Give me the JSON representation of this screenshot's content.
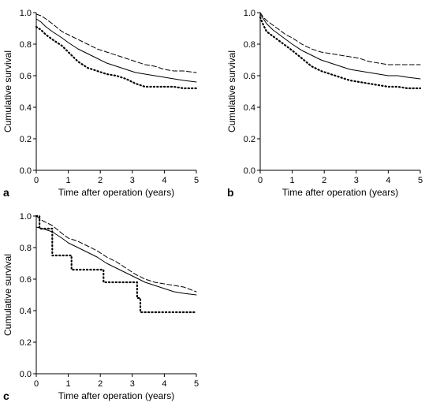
{
  "chart_data": [
    {
      "type": "line",
      "panel_label": "a",
      "xlabel": "Time after operation (years)",
      "ylabel": "Cumulative survival",
      "xlim": [
        0,
        5
      ],
      "ylim": [
        0,
        1.0
      ],
      "xticks": [
        "0",
        "1",
        "2",
        "3",
        "4",
        "5"
      ],
      "yticks": [
        "0.0",
        "0.2",
        "0.4",
        "0.6",
        "0.8",
        "1.0"
      ],
      "series": [
        {
          "style": "dashed",
          "x": [
            0,
            0.15,
            0.3,
            0.5,
            0.8,
            1.0,
            1.3,
            1.6,
            1.9,
            2.2,
            2.5,
            2.8,
            3.1,
            3.4,
            3.7,
            4.0,
            4.3,
            4.6,
            5.0
          ],
          "y": [
            0.99,
            0.98,
            0.96,
            0.93,
            0.88,
            0.86,
            0.83,
            0.8,
            0.77,
            0.75,
            0.73,
            0.71,
            0.69,
            0.67,
            0.66,
            0.64,
            0.63,
            0.63,
            0.62
          ]
        },
        {
          "style": "solid",
          "x": [
            0,
            0.15,
            0.3,
            0.5,
            0.8,
            1.0,
            1.3,
            1.6,
            1.9,
            2.2,
            2.5,
            2.8,
            3.1,
            3.4,
            3.7,
            4.0,
            4.3,
            4.6,
            5.0
          ],
          "y": [
            0.96,
            0.94,
            0.91,
            0.88,
            0.84,
            0.81,
            0.77,
            0.74,
            0.71,
            0.68,
            0.66,
            0.64,
            0.62,
            0.61,
            0.6,
            0.59,
            0.58,
            0.57,
            0.56
          ]
        },
        {
          "style": "dotted",
          "x": [
            0,
            0.15,
            0.3,
            0.5,
            0.8,
            1.0,
            1.3,
            1.6,
            1.9,
            2.2,
            2.5,
            2.8,
            3.1,
            3.4,
            3.7,
            4.0,
            4.3,
            4.6,
            5.0
          ],
          "y": [
            0.91,
            0.89,
            0.86,
            0.83,
            0.79,
            0.75,
            0.69,
            0.65,
            0.63,
            0.61,
            0.6,
            0.58,
            0.55,
            0.53,
            0.53,
            0.53,
            0.53,
            0.52,
            0.52
          ]
        }
      ]
    },
    {
      "type": "line",
      "panel_label": "b",
      "xlabel": "Time after operation (years)",
      "ylabel": "Cumulative survival",
      "xlim": [
        0,
        5
      ],
      "ylim": [
        0,
        1.0
      ],
      "xticks": [
        "0",
        "1",
        "2",
        "3",
        "4",
        "5"
      ],
      "yticks": [
        "0.0",
        "0.2",
        "0.4",
        "0.6",
        "0.8",
        "1.0"
      ],
      "series": [
        {
          "style": "dashed",
          "x": [
            0,
            0.1,
            0.2,
            0.4,
            0.6,
            0.8,
            1.0,
            1.3,
            1.6,
            1.9,
            2.2,
            2.5,
            2.8,
            3.1,
            3.4,
            3.7,
            4.0,
            4.3,
            4.6,
            5.0
          ],
          "y": [
            1.0,
            0.97,
            0.95,
            0.92,
            0.89,
            0.86,
            0.84,
            0.8,
            0.77,
            0.75,
            0.74,
            0.73,
            0.72,
            0.71,
            0.69,
            0.68,
            0.67,
            0.67,
            0.67,
            0.67
          ]
        },
        {
          "style": "solid",
          "x": [
            0,
            0.1,
            0.2,
            0.4,
            0.6,
            0.8,
            1.0,
            1.3,
            1.6,
            1.9,
            2.2,
            2.5,
            2.8,
            3.1,
            3.4,
            3.7,
            4.0,
            4.3,
            4.6,
            5.0
          ],
          "y": [
            0.99,
            0.96,
            0.93,
            0.89,
            0.86,
            0.83,
            0.8,
            0.76,
            0.73,
            0.7,
            0.68,
            0.66,
            0.64,
            0.63,
            0.62,
            0.61,
            0.6,
            0.6,
            0.59,
            0.58
          ]
        },
        {
          "style": "dotted",
          "x": [
            0,
            0.1,
            0.2,
            0.4,
            0.6,
            0.8,
            1.0,
            1.3,
            1.6,
            1.9,
            2.2,
            2.5,
            2.8,
            3.1,
            3.4,
            3.7,
            4.0,
            4.3,
            4.6,
            5.0
          ],
          "y": [
            0.97,
            0.92,
            0.88,
            0.85,
            0.82,
            0.79,
            0.76,
            0.71,
            0.66,
            0.63,
            0.61,
            0.59,
            0.57,
            0.56,
            0.55,
            0.54,
            0.53,
            0.53,
            0.52,
            0.52
          ]
        }
      ]
    },
    {
      "type": "line",
      "panel_label": "c",
      "xlabel": "Time after operation (years)",
      "ylabel": "Cumulative survival",
      "xlim": [
        0,
        5
      ],
      "ylim": [
        0,
        1.0
      ],
      "xticks": [
        "0",
        "1",
        "2",
        "3",
        "4",
        "5"
      ],
      "yticks": [
        "0.0",
        "0.2",
        "0.4",
        "0.6",
        "0.8",
        "1.0"
      ],
      "series": [
        {
          "style": "dashed",
          "x": [
            0,
            0.2,
            0.5,
            0.8,
            1.0,
            1.3,
            1.6,
            1.9,
            2.2,
            2.5,
            2.8,
            3.1,
            3.4,
            3.7,
            4.0,
            4.3,
            4.6,
            5.0
          ],
          "y": [
            1.0,
            0.97,
            0.94,
            0.89,
            0.86,
            0.84,
            0.81,
            0.78,
            0.74,
            0.71,
            0.67,
            0.63,
            0.6,
            0.58,
            0.57,
            0.56,
            0.55,
            0.52
          ]
        },
        {
          "style": "solid",
          "x": [
            0,
            0.2,
            0.5,
            0.8,
            1.0,
            1.3,
            1.6,
            1.9,
            2.2,
            2.5,
            2.8,
            3.1,
            3.4,
            3.7,
            4.0,
            4.3,
            4.6,
            5.0
          ],
          "y": [
            0.93,
            0.92,
            0.9,
            0.86,
            0.83,
            0.8,
            0.77,
            0.74,
            0.7,
            0.67,
            0.64,
            0.61,
            0.58,
            0.56,
            0.54,
            0.52,
            0.51,
            0.5
          ]
        },
        {
          "style": "dotted",
          "x": [
            0,
            0.1,
            0.1,
            0.5,
            0.5,
            1.1,
            1.1,
            2.1,
            2.1,
            3.15,
            3.15,
            3.25,
            3.25,
            5.0
          ],
          "y": [
            1.0,
            1.0,
            0.92,
            0.92,
            0.75,
            0.75,
            0.66,
            0.66,
            0.58,
            0.58,
            0.48,
            0.48,
            0.39,
            0.39
          ]
        }
      ]
    }
  ]
}
